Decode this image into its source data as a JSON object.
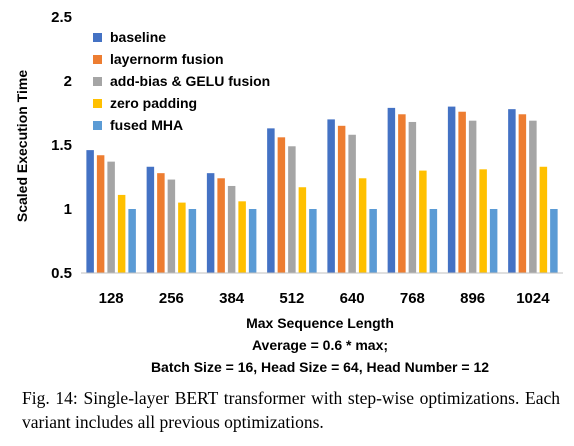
{
  "chart_data": {
    "type": "bar",
    "ylabel": "Scaled Execution Time",
    "xlabel": "Max Sequence Length",
    "notes": [
      "Average = 0.6 * max;",
      "Batch Size = 16, Head Size = 64, Head Number = 12"
    ],
    "ylim": [
      0.5,
      2.5
    ],
    "yticks": [
      "0.5",
      "1",
      "1.5",
      "2",
      "2.5"
    ],
    "grid": false,
    "legend_position": "top-left",
    "categories": [
      "128",
      "256",
      "384",
      "512",
      "640",
      "768",
      "896",
      "1024"
    ],
    "series": [
      {
        "name": "baseline",
        "color": "#4472c4",
        "values": [
          1.46,
          1.33,
          1.28,
          1.63,
          1.7,
          1.79,
          1.8,
          1.78
        ]
      },
      {
        "name": "layernorm fusion",
        "color": "#ed7d31",
        "values": [
          1.42,
          1.28,
          1.24,
          1.56,
          1.65,
          1.74,
          1.76,
          1.74
        ]
      },
      {
        "name": "add-bias & GELU fusion",
        "color": "#a5a5a5",
        "values": [
          1.37,
          1.23,
          1.18,
          1.49,
          1.58,
          1.68,
          1.69,
          1.69
        ]
      },
      {
        "name": "zero padding",
        "color": "#ffc000",
        "values": [
          1.11,
          1.05,
          1.06,
          1.17,
          1.24,
          1.3,
          1.31,
          1.33
        ]
      },
      {
        "name": "fused MHA",
        "color": "#5b9bd5",
        "values": [
          1.0,
          1.0,
          1.0,
          1.0,
          1.0,
          1.0,
          1.0,
          1.0
        ]
      }
    ]
  },
  "caption": "Fig. 14: Single-layer BERT transformer with step-wise optimizations. Each variant includes all previous optimizations."
}
